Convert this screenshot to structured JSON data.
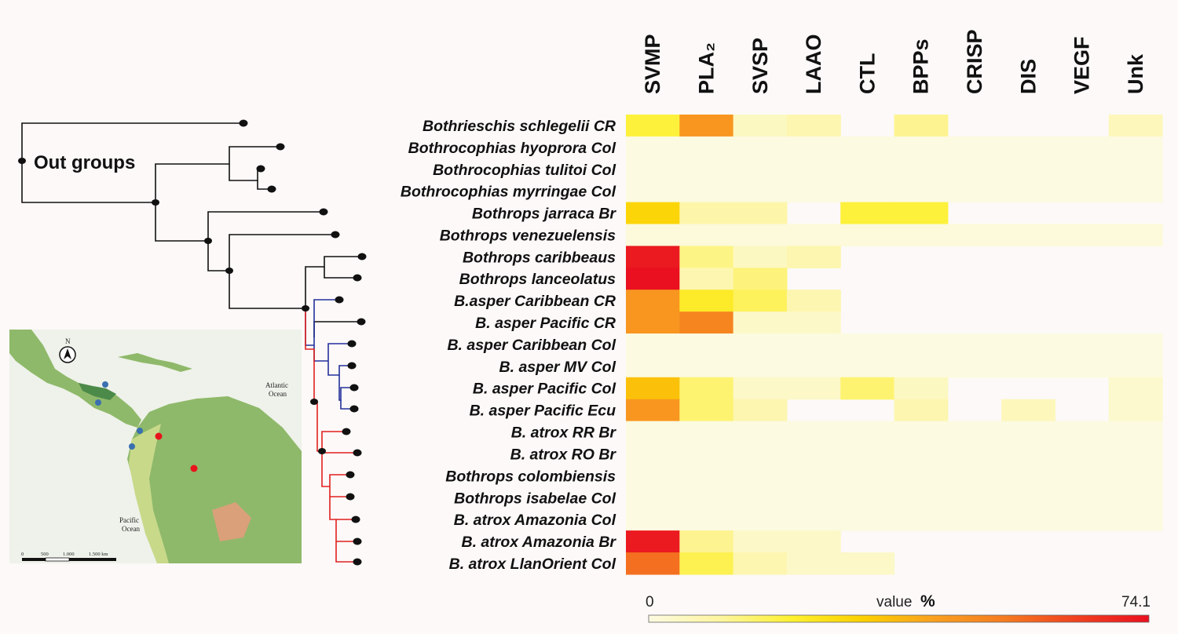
{
  "chart_data": {
    "type": "heatmap",
    "columns": [
      "SVMP",
      "PLA₂",
      "SVSP",
      "LAAO",
      "CTL",
      "BPPs",
      "CRISP",
      "DIS",
      "VEGF",
      "Unk"
    ],
    "rows": [
      "Bothrieschis schlegelii CR",
      "Bothrocophias hyoprora Col",
      "Bothrocophias tulitoi Col",
      "Bothrocophias myrringae Col",
      "Bothrops jarraca Br",
      "Bothrops venezuelensis",
      "Bothrops caribbeaus",
      "Bothrops lanceolatus",
      "B.asper Caribbean CR",
      "B. asper Pacific CR",
      "B. asper Caribbean Col",
      "B. asper MV Col",
      "B. asper Pacific Col",
      "B. asper Pacific Ecu",
      "B. atrox RR Br",
      "B. atrox RO Br",
      "Bothrops colombiensis",
      "Bothrops isabelae Col",
      "B. atrox Amazonia Col",
      "B. atrox Amazonia Br",
      "B. atrox LlanOrient Col"
    ],
    "values": [
      [
        20,
        45,
        5,
        8,
        null,
        12,
        null,
        null,
        null,
        6
      ],
      [
        0,
        0,
        0,
        0,
        0,
        0,
        0,
        0,
        0,
        0
      ],
      [
        0,
        0,
        0,
        0,
        0,
        0,
        0,
        0,
        0,
        0
      ],
      [
        0,
        0,
        0,
        0,
        0,
        0,
        0,
        0,
        0,
        0
      ],
      [
        30,
        9,
        9,
        null,
        20,
        20,
        null,
        null,
        null,
        null
      ],
      [
        1,
        1,
        1,
        1,
        1,
        1,
        1,
        1,
        1,
        1
      ],
      [
        72,
        13,
        5,
        8,
        null,
        null,
        null,
        null,
        null,
        null
      ],
      [
        74.1,
        8,
        14,
        null,
        null,
        null,
        null,
        null,
        null,
        null
      ],
      [
        45,
        23,
        17,
        8,
        null,
        null,
        null,
        null,
        null,
        null
      ],
      [
        45,
        50,
        4,
        4,
        null,
        null,
        null,
        null,
        null,
        null
      ],
      [
        0,
        0,
        0,
        0,
        0,
        0,
        0,
        0,
        0,
        0
      ],
      [
        0,
        0,
        0,
        0,
        0,
        0,
        0,
        0,
        0,
        0
      ],
      [
        35,
        15,
        4,
        4,
        15,
        5,
        null,
        null,
        null,
        3
      ],
      [
        45,
        15,
        8,
        null,
        null,
        8,
        null,
        6,
        null,
        3
      ],
      [
        0,
        0,
        0,
        0,
        0,
        0,
        0,
        0,
        0,
        0
      ],
      [
        0,
        0,
        0,
        0,
        0,
        0,
        0,
        0,
        0,
        0
      ],
      [
        0,
        0,
        0,
        0,
        0,
        0,
        0,
        0,
        0,
        0
      ],
      [
        0,
        0,
        0,
        0,
        0,
        0,
        0,
        0,
        0,
        0
      ],
      [
        0,
        0,
        0,
        0,
        0,
        0,
        0,
        0,
        0,
        0
      ],
      [
        72,
        12,
        4,
        4,
        null,
        null,
        null,
        null,
        null,
        null
      ],
      [
        55,
        18,
        8,
        4,
        4,
        null,
        null,
        null,
        null,
        null
      ]
    ],
    "value_range": [
      0,
      74.1
    ],
    "colorbar": {
      "min_label": "0",
      "max_label": "74.1",
      "title": "value",
      "unit": "%"
    },
    "colormap": [
      "#fcfae0",
      "#fdf5a0",
      "#fdf030",
      "#fcd000",
      "#f9a020",
      "#f57a20",
      "#f04020",
      "#ea1020"
    ]
  },
  "tree": {
    "outgroup_label": "Out groups",
    "branch_colors": {
      "default": "#111111",
      "blue_clade": "#24309a",
      "red_clade": "#e02020"
    }
  },
  "map": {
    "north_label": "N",
    "atlantic_label_1": "Atlantic",
    "atlantic_label_2": "Ocean",
    "pacific_label_1": "Pacific",
    "pacific_label_2": "Ocean",
    "scale_labels": [
      "0",
      "500",
      "1.000",
      "1.500 km"
    ],
    "colors": {
      "ocean": "#ffffff",
      "land": "#8fb96a",
      "highland": "#c8d98a",
      "forest": "#3a7a3a",
      "blue_marker": "#3a6fb0",
      "red_marker": "#e8141c"
    }
  }
}
